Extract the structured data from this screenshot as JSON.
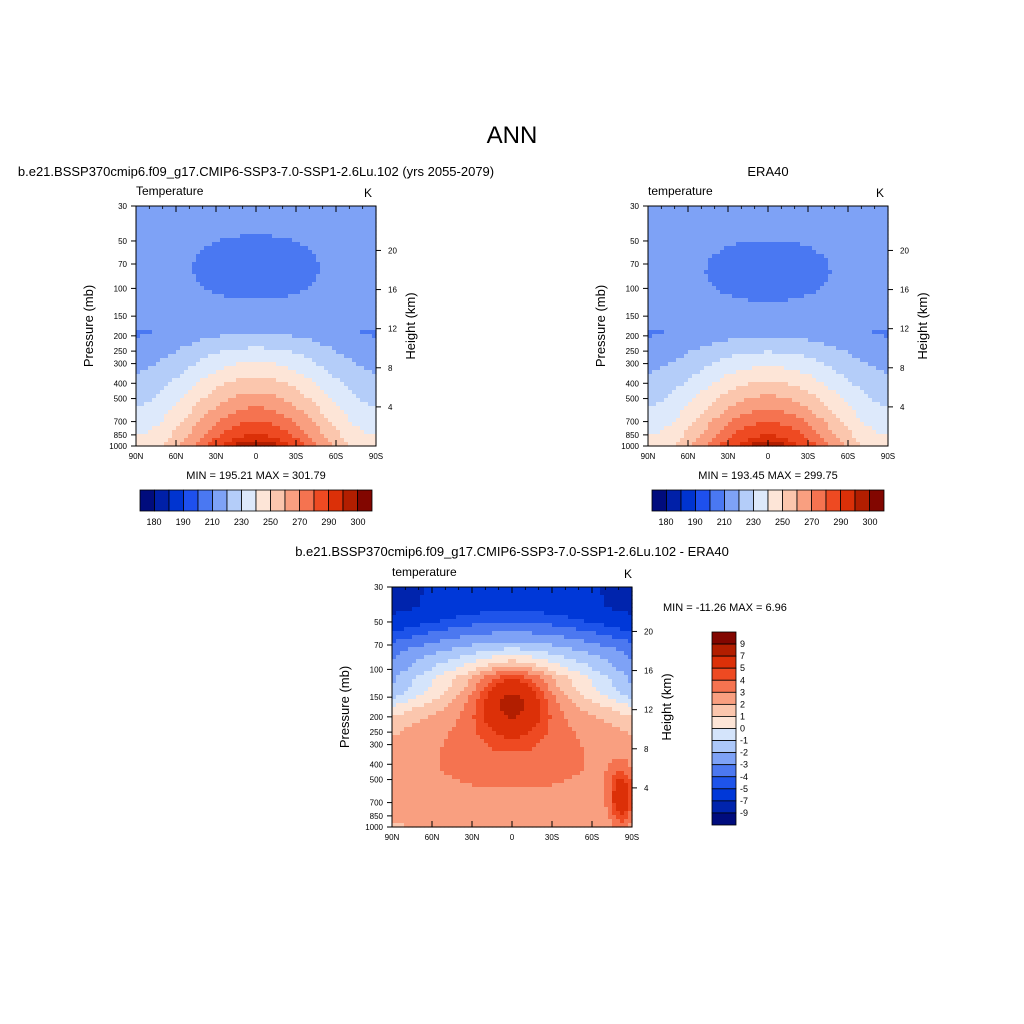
{
  "figure_title": "ANN",
  "colors": {
    "temp_scale": [
      "#000c7d",
      "#0020a8",
      "#0034d0",
      "#1e50ee",
      "#4a78f2",
      "#7ea2f6",
      "#b4cdf9",
      "#dde9fb",
      "#fde5d7",
      "#fbc6ad",
      "#f99f80",
      "#f57350",
      "#ee4a22",
      "#db3008",
      "#b21e00",
      "#820600"
    ],
    "diff_scale": [
      "#000c7d",
      "#0024ad",
      "#0038d8",
      "#1e54ea",
      "#4c78f0",
      "#7ea2f6",
      "#acc8fa",
      "#d4e4fb",
      "#fde5d7",
      "#fbc6ad",
      "#f99f80",
      "#f57350",
      "#ee4a22",
      "#dc3008",
      "#b21e00",
      "#820600"
    ]
  },
  "chart_data": [
    {
      "type": "heatmap",
      "title": "b.e21.BSSP370cmip6.f09_g17.CMIP6-SSP3-7.0-SSP1-2.6Lu.102 (yrs 2055-2079)",
      "variable_label": "Temperature",
      "units": "K",
      "xlabel": "",
      "ylabel": "Pressure (mb)",
      "y2label": "Height (km)",
      "x_ticks": [
        "90N",
        "60N",
        "30N",
        "0",
        "30S",
        "60S",
        "90S"
      ],
      "y_ticks": [
        30,
        50,
        70,
        100,
        150,
        200,
        250,
        300,
        400,
        500,
        700,
        850,
        1000
      ],
      "height_ticks": [
        4,
        8,
        12,
        16,
        20
      ],
      "ylim": [
        30,
        1000
      ],
      "log_y": true,
      "stats": "MIN = 195.21   MAX = 301.79",
      "min": 195.21,
      "max": 301.79,
      "colorbar_ticks": [
        180,
        190,
        210,
        230,
        250,
        270,
        290,
        300
      ],
      "levels": [
        180,
        185,
        190,
        200,
        210,
        220,
        230,
        240,
        250,
        260,
        270,
        280,
        290,
        295,
        300
      ]
    },
    {
      "type": "heatmap",
      "title": "ERA40",
      "variable_label": "temperature",
      "units": "K",
      "xlabel": "",
      "ylabel": "Pressure (mb)",
      "y2label": "Height (km)",
      "x_ticks": [
        "90N",
        "60N",
        "30N",
        "0",
        "30S",
        "60S",
        "90S"
      ],
      "y_ticks": [
        30,
        50,
        70,
        100,
        150,
        200,
        250,
        300,
        400,
        500,
        700,
        850,
        1000
      ],
      "height_ticks": [
        4,
        8,
        12,
        16,
        20
      ],
      "ylim": [
        30,
        1000
      ],
      "log_y": true,
      "stats": "MIN = 193.45   MAX = 299.75",
      "min": 193.45,
      "max": 299.75,
      "colorbar_ticks": [
        180,
        190,
        210,
        230,
        250,
        270,
        290,
        300
      ],
      "levels": [
        180,
        185,
        190,
        200,
        210,
        220,
        230,
        240,
        250,
        260,
        270,
        280,
        290,
        295,
        300
      ]
    },
    {
      "type": "heatmap",
      "title": "b.e21.BSSP370cmip6.f09_g17.CMIP6-SSP3-7.0-SSP1-2.6Lu.102 - ERA40",
      "variable_label": "temperature",
      "units": "K",
      "xlabel": "",
      "ylabel": "Pressure (mb)",
      "y2label": "Height (km)",
      "x_ticks": [
        "90N",
        "60N",
        "30N",
        "0",
        "30S",
        "60S",
        "90S"
      ],
      "y_ticks": [
        30,
        50,
        70,
        100,
        150,
        200,
        250,
        300,
        400,
        500,
        700,
        850,
        1000
      ],
      "height_ticks": [
        4,
        8,
        12,
        16,
        20
      ],
      "ylim": [
        30,
        1000
      ],
      "log_y": true,
      "stats": "MIN = -11.26  MAX =   6.96",
      "min": -11.26,
      "max": 6.96,
      "colorbar_ticks": [
        9,
        7,
        5,
        4,
        3,
        2,
        1,
        0,
        -1,
        -2,
        -3,
        -4,
        -5,
        -7,
        -9
      ],
      "levels": [
        -9,
        -7,
        -5,
        -4,
        -3,
        -2,
        -1,
        0,
        1,
        2,
        3,
        4,
        5,
        7,
        9
      ]
    }
  ]
}
